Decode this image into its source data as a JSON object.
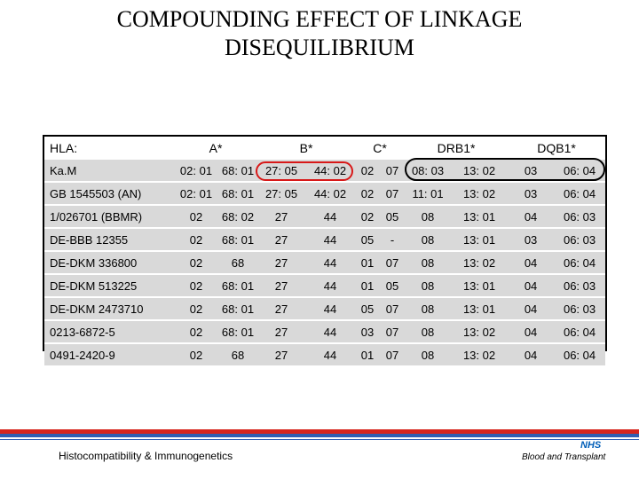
{
  "title": {
    "line1": "COMPOUNDING EFFECT OF LINKAGE",
    "line2": "DISEQUILIBRIUM"
  },
  "table": {
    "headers": [
      "HLA:",
      "A*",
      "B*",
      "C*",
      "DRB1*",
      "DQB1*"
    ],
    "rows": [
      {
        "name": "Ka.M",
        "cells": [
          "02: 01",
          "68: 01",
          "27: 05",
          "44: 02",
          "02",
          "07",
          "08: 03",
          "13: 02",
          "03",
          "06: 04"
        ]
      },
      {
        "name": "GB 1545503 (AN)",
        "cells": [
          "02: 01",
          "68: 01",
          "27: 05",
          "44: 02",
          "02",
          "07",
          "11: 01",
          "13: 02",
          "03",
          "06: 04"
        ]
      },
      {
        "name": "1/026701 (BBMR)",
        "cells": [
          "02",
          "68: 02",
          "27",
          "44",
          "02",
          "05",
          "08",
          "13: 01",
          "04",
          "06: 03"
        ]
      },
      {
        "name": "DE-BBB 12355",
        "cells": [
          "02",
          "68: 01",
          "27",
          "44",
          "05",
          "-",
          "08",
          "13: 01",
          "03",
          "06: 03"
        ]
      },
      {
        "name": "DE-DKM 336800",
        "cells": [
          "02",
          "68",
          "27",
          "44",
          "01",
          "07",
          "08",
          "13: 02",
          "04",
          "06: 04"
        ]
      },
      {
        "name": "DE-DKM 513225",
        "cells": [
          "02",
          "68: 01",
          "27",
          "44",
          "01",
          "05",
          "08",
          "13: 01",
          "04",
          "06: 03"
        ]
      },
      {
        "name": "DE-DKM 2473710",
        "cells": [
          "02",
          "68: 01",
          "27",
          "44",
          "05",
          "07",
          "08",
          "13: 01",
          "04",
          "06: 03"
        ]
      },
      {
        "name": "0213-6872-5",
        "cells": [
          "02",
          "68: 01",
          "27",
          "44",
          "03",
          "07",
          "08",
          "13: 02",
          "04",
          "06: 04"
        ]
      },
      {
        "name": "0491-2420-9",
        "cells": [
          "02",
          "68",
          "27",
          "44",
          "01",
          "07",
          "08",
          "13: 02",
          "04",
          "06: 04"
        ]
      }
    ]
  },
  "footer": {
    "left": "Histocompatibility & Immunogenetics",
    "logo": "NHS",
    "right": "Blood and Transplant"
  },
  "colors": {
    "row_fill": "#d9d9d9",
    "highlight_red": "#d81818",
    "band_red": "#d7261e",
    "band_blue": "#2f5fb3",
    "nhs_blue": "#005eb8"
  }
}
